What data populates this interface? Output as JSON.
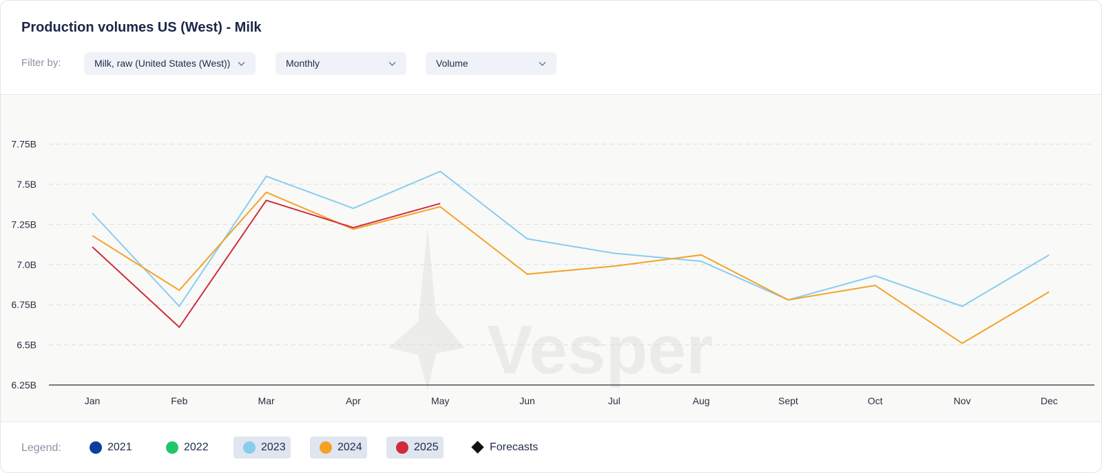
{
  "header": {
    "title": "Production volumes US (West) - Milk",
    "filter_label": "Filter by:",
    "filters": {
      "product": "Milk, raw (United States (West))",
      "period": "Monthly",
      "metric": "Volume"
    }
  },
  "watermark": "Vesper",
  "legend": {
    "label": "Legend:",
    "items": [
      {
        "name": "2021",
        "color": "#0b3f9b",
        "active": false
      },
      {
        "name": "2022",
        "color": "#1fc76a",
        "active": false
      },
      {
        "name": "2023",
        "color": "#87cdee",
        "active": true
      },
      {
        "name": "2024",
        "color": "#f4a226",
        "active": true
      },
      {
        "name": "2025",
        "color": "#d12a3c",
        "active": true
      }
    ],
    "forecasts_label": "Forecasts"
  },
  "chart_data": {
    "type": "line",
    "categories": [
      "Jan",
      "Feb",
      "Mar",
      "Apr",
      "May",
      "Jun",
      "Jul",
      "Aug",
      "Sept",
      "Oct",
      "Nov",
      "Dec"
    ],
    "y_ticks": [
      "6.25B",
      "6.5B",
      "6.75B",
      "7.0B",
      "7.25B",
      "7.5B",
      "7.75B"
    ],
    "ylim": [
      6.25,
      7.98
    ],
    "y_unit": "billions",
    "grid": true,
    "series": [
      {
        "name": "2023",
        "color": "#87cdee",
        "values": [
          7.32,
          6.74,
          7.55,
          7.35,
          7.58,
          7.16,
          7.07,
          7.02,
          6.78,
          6.93,
          6.74,
          7.06
        ]
      },
      {
        "name": "2024",
        "color": "#f4a226",
        "values": [
          7.18,
          6.84,
          7.45,
          7.22,
          7.36,
          6.94,
          6.99,
          7.06,
          6.78,
          6.87,
          6.51,
          6.83
        ]
      },
      {
        "name": "2025",
        "color": "#d12a3c",
        "values": [
          7.11,
          6.61,
          7.4,
          7.23,
          7.38,
          null,
          null,
          null,
          null,
          null,
          null,
          null
        ]
      }
    ]
  }
}
